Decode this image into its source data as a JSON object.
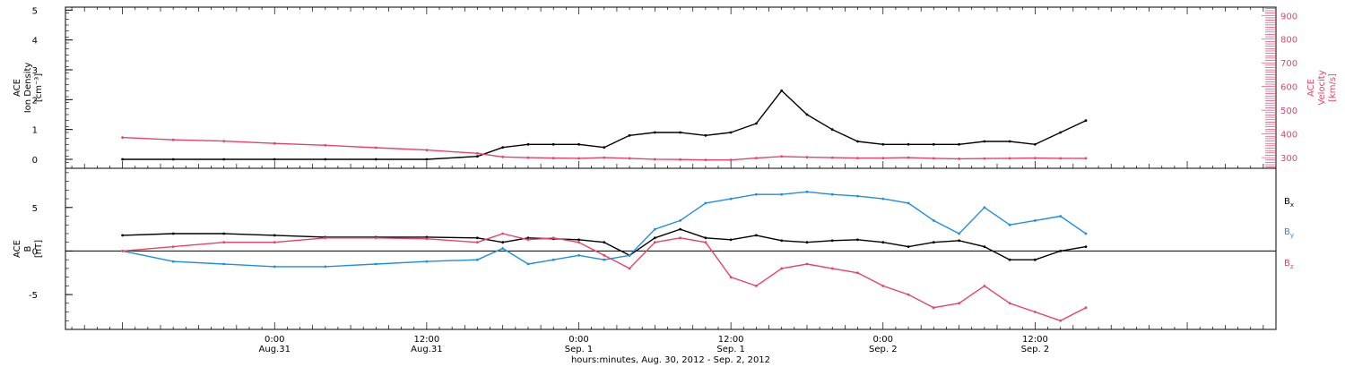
{
  "chart_data": [
    {
      "type": "scatter",
      "panel": "ion-density-and-velocity",
      "ylabel_left": [
        "ACE",
        "Ion Density",
        "[cm⁻³]"
      ],
      "ylabel_right": [
        "ACE",
        "Velocity",
        "[km/s]"
      ],
      "ylim": [
        -0.3,
        5.1
      ],
      "ylim_right": [
        255,
        935
      ],
      "yticks": [
        0,
        1,
        2,
        3,
        4,
        5
      ],
      "yticks_right": [
        300,
        400,
        500,
        600,
        700,
        800,
        900
      ],
      "series": [
        {
          "axis": "left",
          "color": "#000000",
          "x": [
            -12,
            -8,
            -4,
            0,
            4,
            8,
            12,
            16,
            18,
            20,
            22,
            24,
            26,
            28,
            30,
            32,
            34,
            36,
            38,
            40,
            42,
            44,
            46,
            48,
            50,
            52,
            54,
            56,
            58,
            60,
            62,
            64
          ],
          "y": [
            0.0,
            0.0,
            0.0,
            0.0,
            0.0,
            0.0,
            0.0,
            0.1,
            0.4,
            0.5,
            0.5,
            0.5,
            0.4,
            0.8,
            0.9,
            0.9,
            0.8,
            0.9,
            1.2,
            2.3,
            1.5,
            1.0,
            0.6,
            0.5,
            0.5,
            0.5,
            0.5,
            0.6,
            0.6,
            0.5,
            0.9,
            1.3
          ]
        },
        {
          "axis": "right",
          "color": "#e8426a",
          "x": [
            -12,
            -8,
            -4,
            0,
            4,
            8,
            12,
            16,
            18,
            20,
            22,
            24,
            26,
            28,
            30,
            32,
            34,
            36,
            38,
            40,
            42,
            44,
            46,
            48,
            50,
            52,
            54,
            56,
            58,
            60,
            62,
            64
          ],
          "y": [
            385,
            375,
            370,
            360,
            352,
            342,
            332,
            318,
            303,
            300,
            298,
            297,
            300,
            297,
            293,
            292,
            290,
            290,
            298,
            305,
            302,
            300,
            298,
            298,
            300,
            297,
            295,
            296,
            297,
            298,
            297,
            297
          ]
        }
      ]
    },
    {
      "type": "scatter",
      "panel": "magnetic-field",
      "ylabel_left": [
        "ACE",
        "B",
        "[nT]"
      ],
      "ylim": [
        -9.0,
        9.5
      ],
      "yticks": [
        -5,
        0,
        5
      ],
      "series": [
        {
          "name": "Bx",
          "color": "#000000",
          "x": [
            -12,
            -8,
            -4,
            0,
            4,
            8,
            12,
            16,
            18,
            20,
            22,
            24,
            26,
            28,
            30,
            32,
            34,
            36,
            38,
            40,
            42,
            44,
            46,
            48,
            50,
            52,
            54,
            56,
            58,
            60,
            62,
            64
          ],
          "y": [
            1.8,
            2.0,
            2.0,
            1.8,
            1.6,
            1.6,
            1.6,
            1.5,
            1.0,
            1.5,
            1.4,
            1.3,
            1.0,
            -0.5,
            1.5,
            2.5,
            1.5,
            1.3,
            1.8,
            1.2,
            1.0,
            1.2,
            1.3,
            1.0,
            0.5,
            1.0,
            1.2,
            0.5,
            -1.0,
            -1.0,
            0.0,
            0.5
          ]
        },
        {
          "name": "By",
          "color": "#1f8ee0",
          "x": [
            -12,
            -8,
            -4,
            0,
            4,
            8,
            12,
            16,
            18,
            20,
            22,
            24,
            26,
            28,
            30,
            32,
            34,
            36,
            38,
            40,
            42,
            44,
            46,
            48,
            50,
            52,
            54,
            56,
            58,
            60,
            62,
            64
          ],
          "y": [
            0.0,
            -1.2,
            -1.5,
            -1.8,
            -1.8,
            -1.5,
            -1.2,
            -1.0,
            0.3,
            -1.5,
            -1.0,
            -0.5,
            -1.0,
            -0.5,
            2.5,
            3.5,
            5.5,
            6.0,
            6.5,
            6.5,
            6.8,
            6.5,
            6.3,
            6.0,
            5.5,
            3.5,
            2.0,
            5.0,
            3.0,
            3.5,
            4.0,
            2.0
          ]
        },
        {
          "name": "Bz",
          "color": "#e8426a",
          "x": [
            -12,
            -8,
            -4,
            0,
            4,
            8,
            12,
            16,
            18,
            20,
            22,
            24,
            26,
            28,
            30,
            32,
            34,
            36,
            38,
            40,
            42,
            44,
            46,
            48,
            50,
            52,
            54,
            56,
            58,
            60,
            62,
            64
          ],
          "y": [
            0.0,
            0.5,
            1.0,
            1.0,
            1.5,
            1.5,
            1.4,
            1.0,
            2.0,
            1.3,
            1.5,
            1.0,
            -0.5,
            -2.0,
            1.0,
            1.5,
            1.0,
            -3.0,
            -4.0,
            -2.0,
            -1.5,
            -2.0,
            -2.5,
            -4.0,
            -5.0,
            -6.5,
            -6.0,
            -4.0,
            -6.0,
            -7.0,
            -8.0,
            -6.5
          ]
        }
      ]
    }
  ],
  "legend": [
    {
      "label": "B",
      "sub": "x",
      "color": "#000000"
    },
    {
      "label": "B",
      "sub": "y",
      "color": "#1f8ee0"
    },
    {
      "label": "B",
      "sub": "z",
      "color": "#e8426a"
    }
  ],
  "xaxis": {
    "xlim": [
      -16.5,
      79
    ],
    "ticks": [
      {
        "x": 0,
        "time": "0:00",
        "date": "Aug.31"
      },
      {
        "x": 12,
        "time": "12:00",
        "date": "Aug.31"
      },
      {
        "x": 24,
        "time": "0:00",
        "date": "Sep. 1"
      },
      {
        "x": 36,
        "time": "12:00",
        "date": "Sep. 1"
      },
      {
        "x": 48,
        "time": "0:00",
        "date": "Sep. 2"
      },
      {
        "x": 60,
        "time": "12:00",
        "date": "Sep. 2"
      }
    ],
    "xlabel": "hours:minutes, Aug. 30, 2012 - Sep.  2, 2012"
  }
}
